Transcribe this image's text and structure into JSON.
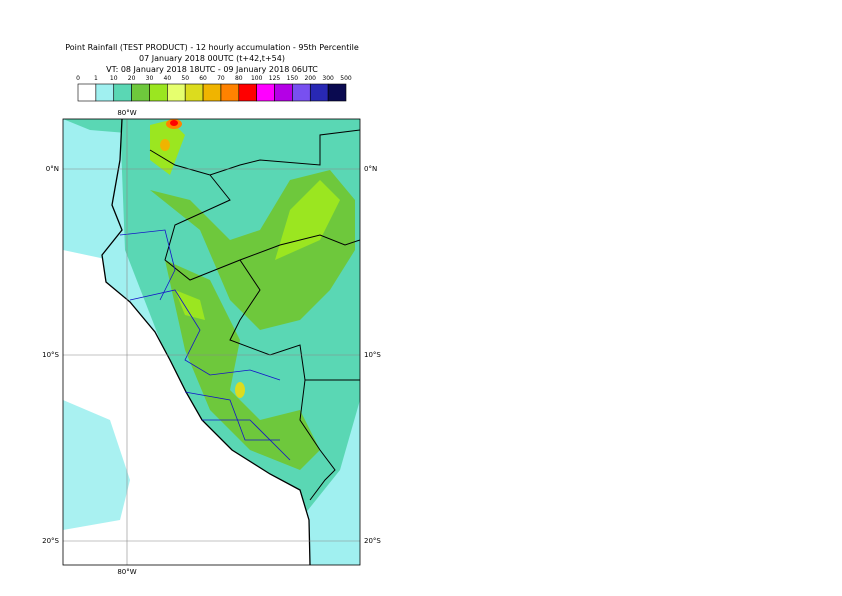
{
  "header": {
    "title": "Point Rainfall (TEST PRODUCT) - 12 hourly accumulation - 95th Percentile",
    "base_time": "07 January 2018 00UTC (t+42,t+54)",
    "valid_time": "VT: 08 January 2018 18UTC - 09 January 2018 06UTC"
  },
  "legend": {
    "labels": [
      "0",
      "1",
      "10",
      "20",
      "30",
      "40",
      "50",
      "60",
      "70",
      "80",
      "100",
      "125",
      "150",
      "200",
      "300",
      "500"
    ],
    "colors": [
      "#ffffff",
      "#a0f0f0",
      "#5ad7b4",
      "#6ec83c",
      "#9be620",
      "#e6ff6e",
      "#dcdc1e",
      "#f0b400",
      "#ff8200",
      "#ff0000",
      "#ff00ff",
      "#b400e6",
      "#7850f0",
      "#2828b4",
      "#0a0a50"
    ]
  },
  "map": {
    "lat_labels": [
      "0°N",
      "10°S",
      "20°S"
    ],
    "lon_label": "80°W"
  }
}
